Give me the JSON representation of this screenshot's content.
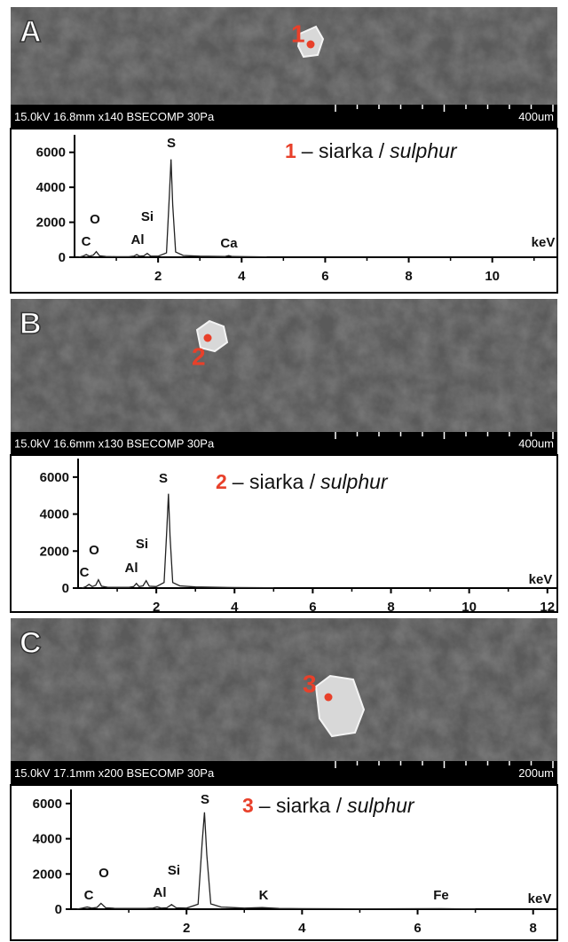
{
  "images": [
    {
      "letter": "A",
      "point": "1",
      "info": "15.0kV 16.8mm x140 BSECOMP 30Pa",
      "scale": "400um"
    },
    {
      "letter": "B",
      "point": "2",
      "info": "15.0kV 16.6mm x130 BSECOMP 30Pa",
      "scale": "400um"
    },
    {
      "letter": "C",
      "point": "3",
      "info": "15.0kV 17.1mm x200 BSECOMP 30Pa",
      "scale": "200um"
    }
  ],
  "chart_data": [
    {
      "type": "line",
      "title_number": "1",
      "title": "– siarka /",
      "title_italic": "sulphur",
      "xlabel": "keV",
      "peak_labels": [
        "C",
        "O",
        "Al",
        "Si",
        "S",
        "Ca"
      ],
      "color": "#222222",
      "x": [
        0.1,
        0.2,
        0.28,
        0.36,
        0.45,
        0.52,
        0.6,
        0.75,
        1.0,
        1.3,
        1.42,
        1.49,
        1.56,
        1.66,
        1.74,
        1.82,
        2.0,
        2.2,
        2.27,
        2.31,
        2.35,
        2.42,
        2.6,
        3.0,
        3.6,
        3.69,
        3.78,
        4.2,
        4.6
      ],
      "values": [
        0,
        60,
        150,
        60,
        120,
        320,
        80,
        40,
        30,
        30,
        60,
        150,
        60,
        80,
        220,
        70,
        60,
        250,
        3500,
        5600,
        3000,
        300,
        100,
        60,
        40,
        90,
        40,
        30,
        20
      ],
      "xlim": [
        0,
        11.6
      ],
      "xticks": [
        2,
        4,
        6,
        8,
        10
      ],
      "ylim": [
        0,
        7000
      ],
      "yticks": [
        0,
        2000,
        4000,
        6000
      ]
    },
    {
      "type": "line",
      "title_number": "2",
      "title": "– siarka /",
      "title_italic": "sulphur",
      "xlabel": "keV",
      "peak_labels": [
        "C",
        "O",
        "Al",
        "Si",
        "S"
      ],
      "color": "#222222",
      "x": [
        0.1,
        0.2,
        0.28,
        0.36,
        0.45,
        0.52,
        0.6,
        0.75,
        1.0,
        1.3,
        1.42,
        1.49,
        1.56,
        1.66,
        1.74,
        1.82,
        2.0,
        2.2,
        2.27,
        2.31,
        2.35,
        2.42,
        2.6,
        3.0,
        4.0,
        5.0
      ],
      "values": [
        0,
        80,
        200,
        80,
        150,
        450,
        100,
        50,
        40,
        40,
        80,
        250,
        80,
        120,
        400,
        100,
        80,
        300,
        3200,
        5100,
        2800,
        300,
        120,
        60,
        30,
        20
      ],
      "xlim": [
        0,
        12.3
      ],
      "xticks": [
        2,
        4,
        6,
        8,
        10,
        12
      ],
      "ylim": [
        0,
        7000
      ],
      "yticks": [
        0,
        2000,
        4000,
        6000
      ]
    },
    {
      "type": "line",
      "title_number": "3",
      "title": "– siarka /",
      "title_italic": "sulphur",
      "xlabel": "keV",
      "peak_labels": [
        "C",
        "O",
        "Al",
        "Si",
        "S",
        "K",
        "Fe"
      ],
      "color": "#222222",
      "x": [
        0.1,
        0.2,
        0.28,
        0.36,
        0.45,
        0.52,
        0.6,
        0.75,
        1.0,
        1.3,
        1.42,
        1.49,
        1.56,
        1.66,
        1.74,
        1.82,
        2.0,
        2.2,
        2.27,
        2.31,
        2.35,
        2.42,
        2.6,
        3.0,
        3.31,
        3.6,
        4.0,
        5.0,
        6.4,
        7.0
      ],
      "values": [
        0,
        60,
        120,
        60,
        100,
        330,
        80,
        50,
        40,
        40,
        60,
        130,
        60,
        80,
        260,
        80,
        60,
        280,
        3800,
        5500,
        3100,
        300,
        120,
        60,
        90,
        40,
        30,
        20,
        30,
        10
      ],
      "xlim": [
        0,
        8.45
      ],
      "xticks": [
        2,
        4,
        6,
        8
      ],
      "ylim": [
        0,
        6800
      ],
      "yticks": [
        0,
        2000,
        4000,
        6000
      ]
    }
  ]
}
